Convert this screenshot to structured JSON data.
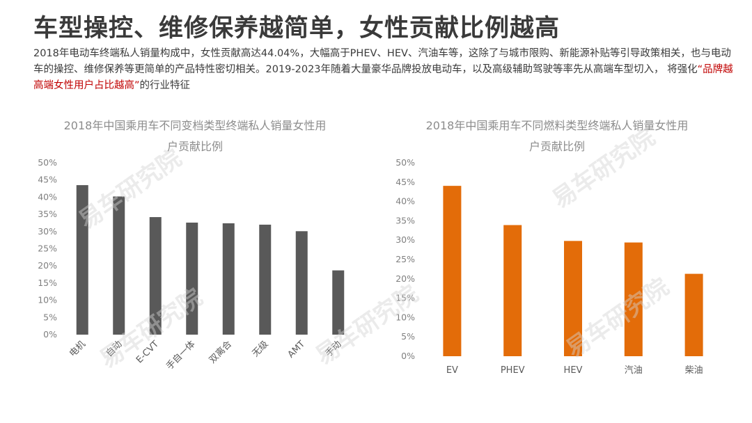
{
  "page": {
    "title": "车型操控、维修保养越简单，女性贡献比例越高",
    "description_pre": "2018年电动车终端私人销量构成中，女性贡献高达44.04%，大幅高于PHEV、HEV、汽油车等，这除了与城市限购、新能源补贴等引导政策相关，也与电动车的操控、维修保养等更简单的产品特性密切相关。2019-2023年随着大量豪华品牌投放电动车，以及高级辅助驾驶等率先从高端车型切入， 将强化",
    "description_highlight": "“品牌越高端女性用户占比越高”",
    "description_post": "的行业特征",
    "watermark": "易车研究院"
  },
  "colors": {
    "bar_gray": "#595959",
    "bar_orange": "#e36c09",
    "highlight": "#c00000"
  },
  "chart_data": [
    {
      "type": "bar",
      "title_line1": "2018年中国乘用车不同变档类型终端私人销量女性用",
      "title_line2": "户贡献比例",
      "categories": [
        "电机",
        "自动",
        "E-CVT",
        "手自一体",
        "双离合",
        "无级",
        "AMT",
        "手动"
      ],
      "values": [
        43.5,
        40.2,
        34.2,
        32.6,
        32.4,
        32.0,
        30.1,
        18.7
      ],
      "ylim": [
        0,
        50
      ],
      "yticks": [
        "0%",
        "5%",
        "10%",
        "15%",
        "20%",
        "25%",
        "30%",
        "35%",
        "40%",
        "45%",
        "50%"
      ],
      "label_rotation": "rotated",
      "grid": false
    },
    {
      "type": "bar",
      "title_line1": "2018年中国乘用车不同燃料类型终端私人销量女性用",
      "title_line2": "户贡献比例",
      "categories": [
        "EV",
        "PHEV",
        "HEV",
        "汽油",
        "柴油"
      ],
      "values": [
        44.04,
        33.9,
        29.8,
        29.4,
        21.3
      ],
      "ylim": [
        0,
        50
      ],
      "yticks": [
        "0%",
        "5%",
        "10%",
        "15%",
        "20%",
        "25%",
        "30%",
        "35%",
        "40%",
        "45%",
        "50%"
      ],
      "label_rotation": "horizontal",
      "grid": false
    }
  ]
}
